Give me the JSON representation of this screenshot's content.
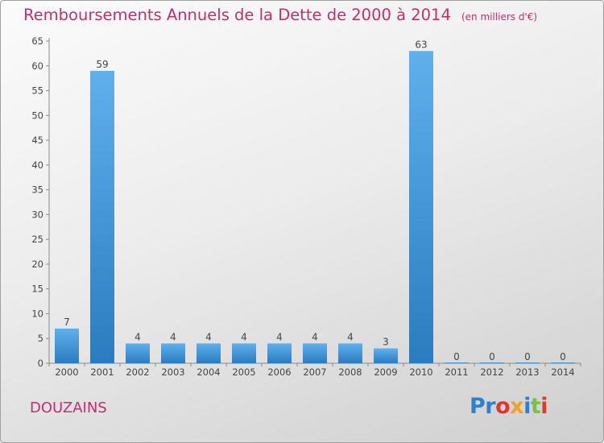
{
  "chart_data": {
    "type": "bar",
    "title": "Remboursements Annuels de la Dette de 2000 à 2014",
    "subtitle": "(en milliers d'€)",
    "categories": [
      "2000",
      "2001",
      "2002",
      "2003",
      "2004",
      "2005",
      "2006",
      "2007",
      "2008",
      "2009",
      "2010",
      "2011",
      "2012",
      "2013",
      "2014"
    ],
    "values": [
      7,
      59,
      4,
      4,
      4,
      4,
      4,
      4,
      4,
      3,
      63,
      0,
      0,
      0,
      0
    ],
    "ylim": [
      0,
      65
    ],
    "yticks": [
      0,
      5,
      10,
      15,
      20,
      25,
      30,
      35,
      40,
      45,
      50,
      55,
      60,
      65
    ],
    "grid": false,
    "bar_color": "#3e9ae0",
    "title_color": "#c0306f"
  },
  "town": "DOUZAINS",
  "logo": {
    "text": "Proxiti",
    "letters": [
      "Pr",
      "o",
      "x",
      "i",
      "t",
      "i"
    ]
  }
}
